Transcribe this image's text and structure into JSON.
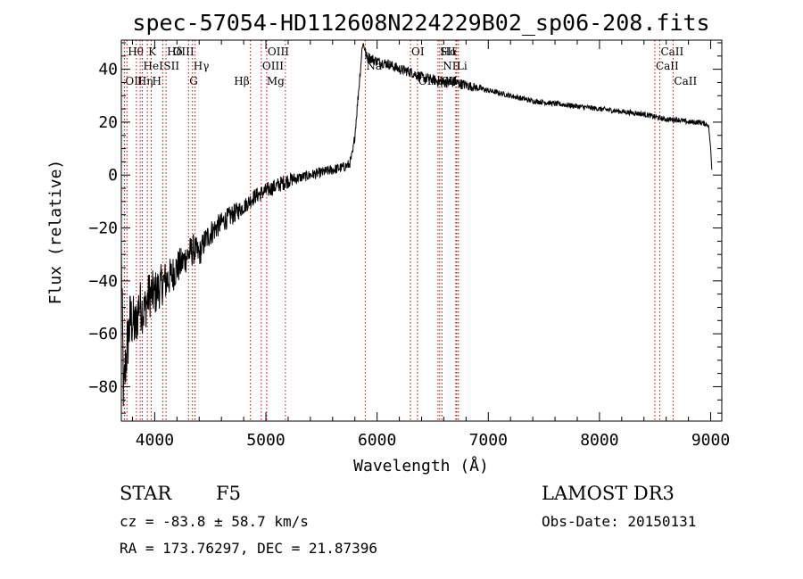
{
  "chart_data": {
    "type": "line",
    "title": "spec-57054-HD112608N224229B02_sp06-208.fits",
    "xlabel": "Wavelength (Å)",
    "ylabel": "Flux (relative)",
    "xlim": [
      3700,
      9100
    ],
    "ylim": [
      -93,
      51
    ],
    "xticks": [
      4000,
      5000,
      6000,
      7000,
      8000,
      9000
    ],
    "yticks": [
      -80,
      -60,
      -40,
      -20,
      0,
      20,
      40
    ],
    "series": [
      {
        "name": "spectrum",
        "x": [
          3700,
          3720,
          3740,
          3760,
          3780,
          3800,
          3830,
          3860,
          3900,
          3950,
          4000,
          4050,
          4100,
          4150,
          4200,
          4250,
          4300,
          4350,
          4400,
          4450,
          4500,
          4600,
          4700,
          4800,
          4900,
          5000,
          5100,
          5200,
          5300,
          5400,
          5500,
          5600,
          5700,
          5750,
          5780,
          5800,
          5820,
          5840,
          5860,
          5870,
          5880,
          5890,
          5900,
          5950,
          6000,
          6100,
          6200,
          6300,
          6400,
          6500,
          6600,
          6700,
          6800,
          7000,
          7200,
          7400,
          7600,
          7800,
          8000,
          8200,
          8400,
          8500,
          8600,
          8700,
          8800,
          8900,
          8980,
          9000,
          9010
        ],
        "y": [
          -30,
          -85,
          -70,
          -62,
          -55,
          -55,
          -58,
          -48,
          -52,
          -45,
          -45,
          -42,
          -40,
          -38,
          -35,
          -33,
          -30,
          -28,
          -30,
          -25,
          -22,
          -18,
          -15,
          -12,
          -8,
          -6,
          -4,
          -2,
          -1,
          0,
          1,
          2,
          3,
          4,
          8,
          15,
          25,
          35,
          45,
          50,
          49,
          48,
          45,
          44,
          43,
          42,
          40,
          39,
          37,
          36,
          35,
          35,
          34,
          32,
          30,
          28,
          27,
          26,
          25,
          24,
          23,
          22,
          21,
          21,
          20,
          20,
          19,
          10,
          2
        ],
        "noise": [
          12,
          12,
          12,
          12,
          12,
          11,
          10,
          10,
          9,
          9,
          9,
          8,
          8,
          7,
          7,
          6,
          6,
          6,
          5,
          5,
          5,
          4,
          4,
          3,
          3,
          3,
          3,
          3,
          2,
          2,
          2,
          2,
          2,
          2,
          2,
          2,
          2,
          2,
          2,
          2,
          2,
          2,
          2,
          2,
          2,
          2,
          2,
          2,
          2,
          2,
          2,
          2,
          2,
          1,
          1,
          1,
          1,
          1,
          1,
          1,
          1,
          1,
          1,
          1,
          1,
          1,
          1,
          0,
          0
        ]
      }
    ],
    "lines": [
      {
        "w": 3727,
        "label": "OII",
        "row": 3,
        "side": "right"
      },
      {
        "w": 3750,
        "label": "Hθ",
        "row": 1,
        "side": "right"
      },
      {
        "w": 3835,
        "label": "Hη",
        "row": 3,
        "side": "right"
      },
      {
        "w": 3869,
        "label": "",
        "row": 0,
        "side": "right"
      },
      {
        "w": 3889,
        "label": "HeI",
        "row": 2,
        "side": "right"
      },
      {
        "w": 3934,
        "label": "K",
        "row": 1,
        "side": "right"
      },
      {
        "w": 3969,
        "label": "H",
        "row": 3,
        "side": "right"
      },
      {
        "w": 4072,
        "label": "SII",
        "row": 2,
        "side": "right"
      },
      {
        "w": 4102,
        "label": "Hδ",
        "row": 1,
        "side": "right"
      },
      {
        "w": 4304,
        "label": "G",
        "row": 3,
        "side": "right"
      },
      {
        "w": 4340,
        "label": "Hγ",
        "row": 2,
        "side": "right"
      },
      {
        "w": 4363,
        "label": "OIII",
        "row": 1,
        "side": "left"
      },
      {
        "w": 4861,
        "label": "Hβ",
        "row": 3,
        "side": "left"
      },
      {
        "w": 4959,
        "label": "OIII",
        "row": 2,
        "side": "right"
      },
      {
        "w": 5007,
        "label": "OIII",
        "row": 1,
        "side": "right"
      },
      {
        "w": 5175,
        "label": "Mg",
        "row": 3,
        "side": "left"
      },
      {
        "w": 5894,
        "label": "Na",
        "row": 2,
        "side": "right"
      },
      {
        "w": 6300,
        "label": "OI",
        "row": 1,
        "side": "right"
      },
      {
        "w": 6363,
        "label": "OI",
        "row": 3,
        "side": "right"
      },
      {
        "w": 6548,
        "label": "NII",
        "row": 3,
        "side": "right"
      },
      {
        "w": 6563,
        "label": "Hα",
        "row": 1,
        "side": "right"
      },
      {
        "w": 6583,
        "label": "NII",
        "row": 2,
        "side": "right"
      },
      {
        "w": 6708,
        "label": "Li",
        "row": 2,
        "side": "right"
      },
      {
        "w": 6716,
        "label": "SII",
        "row": 1,
        "side": "left"
      },
      {
        "w": 6731,
        "label": "SII",
        "row": 3,
        "side": "left"
      },
      {
        "w": 8498,
        "label": "CaII",
        "row": 2,
        "side": "right"
      },
      {
        "w": 8542,
        "label": "CaII",
        "row": 1,
        "side": "right"
      },
      {
        "w": 8662,
        "label": "CaII",
        "row": 3,
        "side": "right"
      }
    ]
  },
  "info": {
    "object_class": "STAR",
    "subclass": "F5",
    "survey": "LAMOST DR3",
    "redshift": "cz = -83.8 ± 58.7 km/s",
    "obs_date": "Obs-Date: 20150131",
    "coords": "RA = 173.76297, DEC =  21.87396"
  },
  "colors": {
    "line_marker": "#cc0000",
    "spectrum": "#000000"
  }
}
